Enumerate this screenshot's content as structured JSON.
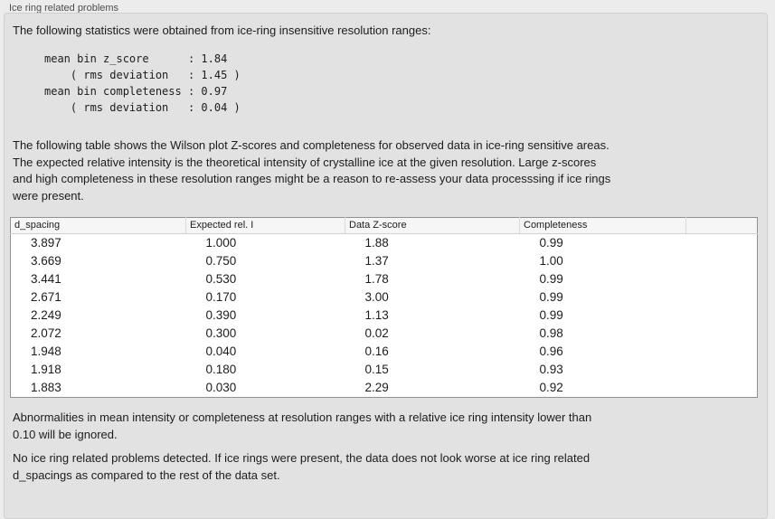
{
  "panel": {
    "title": "Ice ring related problems",
    "intro": "The following statistics were obtained from ice-ring insensitive resolution ranges:",
    "stats_block": "mean bin z_score      : 1.84\n    ( rms deviation   : 1.45 )\nmean bin completeness : 0.97\n    ( rms deviation   : 0.04 )",
    "table_description": "The following table shows the Wilson plot Z-scores and completeness for observed data in ice-ring sensitive areas.\nThe expected relative intensity is the theoretical intensity of crystalline ice at the given resolution. Large z-scores\nand high completeness in these resolution ranges might be a reason to re-assess your data processsing if ice rings\nwere present.",
    "ignore_note": "Abnormalities in mean intensity or completeness at resolution ranges with a relative ice ring intensity lower than\n0.10 will be ignored.",
    "conclusion": "No ice ring related problems detected. If ice rings were present, the data does not look worse at ice ring related\nd_spacings as compared to the rest of the data set."
  },
  "table": {
    "columns": [
      "d_spacing",
      "Expected rel. I",
      "Data Z-score",
      "Completeness",
      ""
    ],
    "rows": [
      [
        "3.897",
        "1.000",
        "1.88",
        "0.99"
      ],
      [
        "3.669",
        "0.750",
        "1.37",
        "1.00"
      ],
      [
        "3.441",
        "0.530",
        "1.78",
        "0.99"
      ],
      [
        "2.671",
        "0.170",
        "3.00",
        "0.99"
      ],
      [
        "2.249",
        "0.390",
        "1.13",
        "0.99"
      ],
      [
        "2.072",
        "0.300",
        "0.02",
        "0.98"
      ],
      [
        "1.948",
        "0.040",
        "0.16",
        "0.96"
      ],
      [
        "1.918",
        "0.180",
        "0.15",
        "0.93"
      ],
      [
        "1.883",
        "0.030",
        "2.29",
        "0.92"
      ]
    ]
  },
  "colors": {
    "page_bg": "#ececec",
    "panel_bg": "#e2e2e2",
    "panel_border": "#cfcfcf",
    "table_border": "#919191",
    "table_header_bg": "#f6f6f6",
    "label_color": "#4c4c4c",
    "text_color": "#1c1c1c"
  }
}
